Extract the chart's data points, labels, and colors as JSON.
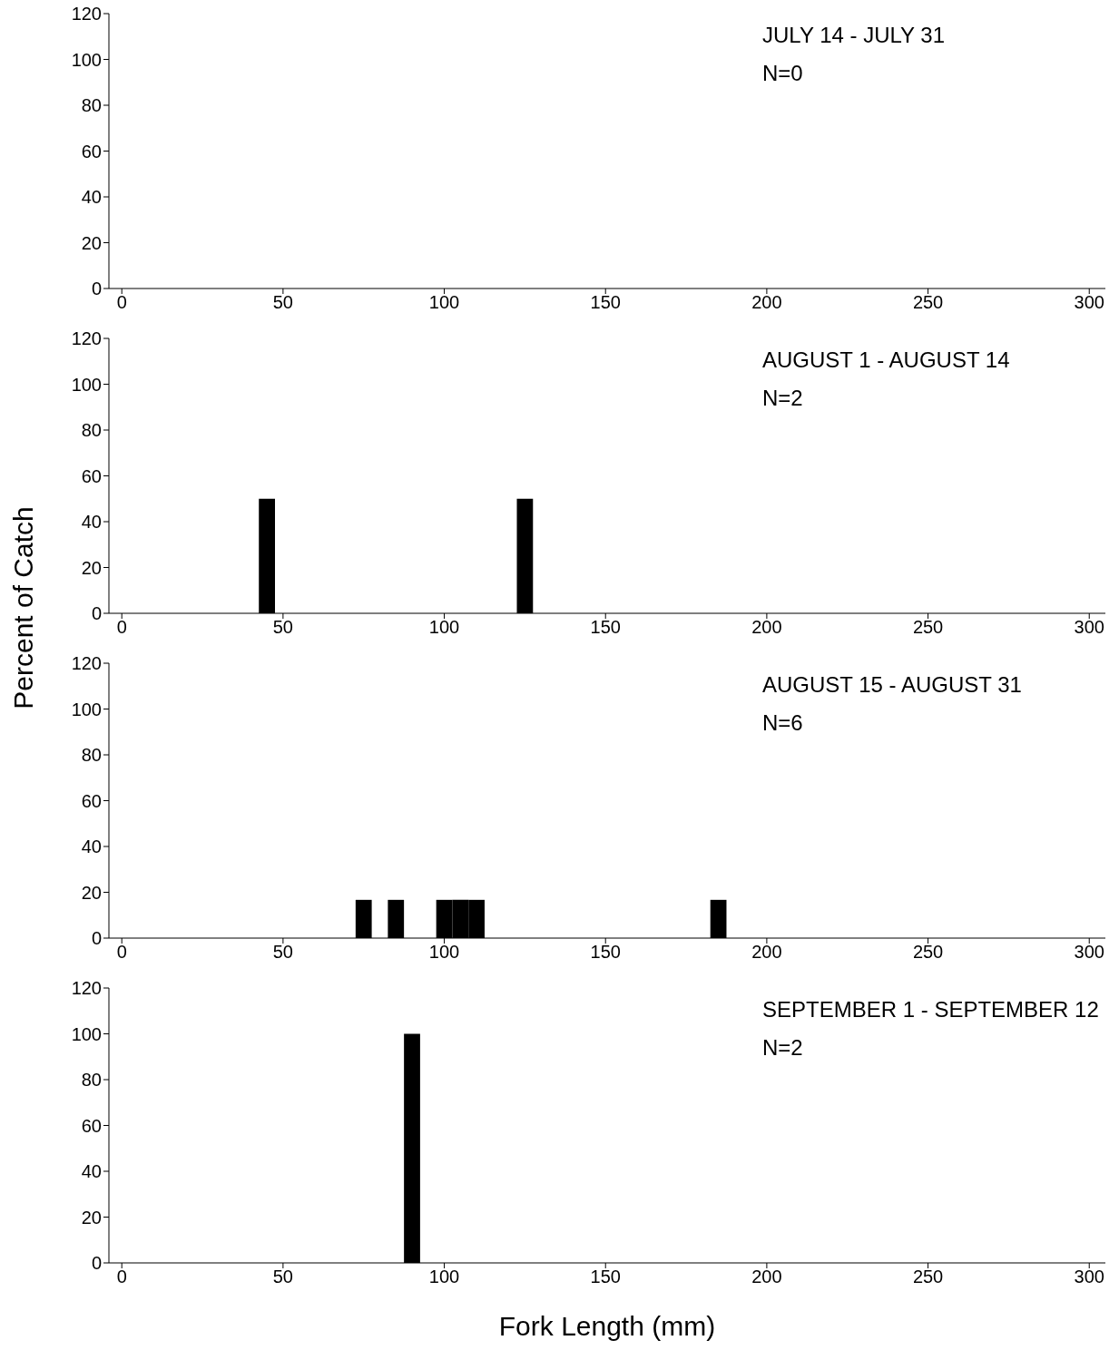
{
  "chart_data": [
    {
      "type": "histogram",
      "xlim": [
        -4,
        305
      ],
      "xticks": [
        0,
        50,
        100,
        150,
        200,
        250,
        300
      ],
      "ylim": [
        0,
        120
      ],
      "yticks": [
        0,
        20,
        40,
        60,
        80,
        100,
        120
      ],
      "grid": false,
      "annotations": [
        "JULY 14 - JULY 31",
        "N=0"
      ]
    },
    {
      "type": "histogram",
      "bins": [
        42.5,
        47.5,
        52.5,
        57.5,
        62.5,
        67.5,
        72.5,
        77.5,
        82.5,
        87.5,
        92.5,
        97.5,
        102.5,
        107.5,
        112.5,
        117.5,
        122.5,
        127.5
      ],
      "values": [
        50,
        0,
        0,
        0,
        0,
        0,
        0,
        0,
        0,
        0,
        0,
        0,
        0,
        0,
        0,
        0,
        50
      ],
      "color": "#000000",
      "xlim": [
        -4,
        305
      ],
      "xticks": [
        0,
        50,
        100,
        150,
        200,
        250,
        300
      ],
      "ylim": [
        0,
        120
      ],
      "yticks": [
        0,
        20,
        40,
        60,
        80,
        100,
        120
      ],
      "grid": false,
      "ylabel": "Percent of Catch",
      "annotations": [
        "AUGUST 1 - AUGUST 14",
        "N=2"
      ]
    },
    {
      "type": "histogram",
      "bins": [
        72.5,
        77.5,
        82.5,
        87.5,
        92.5,
        97.5,
        102.5,
        107.5,
        112.5,
        117.5,
        122.5,
        127.5,
        132.5,
        137.5,
        142.5,
        147.5,
        152.5,
        157.5,
        162.5,
        167.5,
        172.5,
        177.5,
        182.5,
        187.5
      ],
      "values": [
        16.7,
        0,
        16.7,
        0,
        0,
        16.7,
        16.7,
        16.7,
        0,
        0,
        0,
        0,
        0,
        0,
        0,
        0,
        0,
        0,
        0,
        0,
        0,
        0,
        16.7
      ],
      "color": "#000000",
      "xlim": [
        -4,
        305
      ],
      "xticks": [
        0,
        50,
        100,
        150,
        200,
        250,
        300
      ],
      "ylim": [
        0,
        120
      ],
      "yticks": [
        0,
        20,
        40,
        60,
        80,
        100,
        120
      ],
      "grid": false,
      "annotations": [
        "AUGUST 15 - AUGUST 31",
        "N=6"
      ]
    },
    {
      "type": "histogram",
      "bins": [
        87.5,
        92.5
      ],
      "values": [
        100
      ],
      "color": "#000000",
      "xlim": [
        -4,
        305
      ],
      "xticks": [
        0,
        50,
        100,
        150,
        200,
        250,
        300
      ],
      "ylim": [
        0,
        120
      ],
      "yticks": [
        0,
        20,
        40,
        60,
        80,
        100,
        120
      ],
      "grid": false,
      "xlabel": "Fork Length (mm)",
      "annotations": [
        "SEPTEMBER 1 - SEPTEMBER 12",
        "N=2"
      ]
    }
  ]
}
